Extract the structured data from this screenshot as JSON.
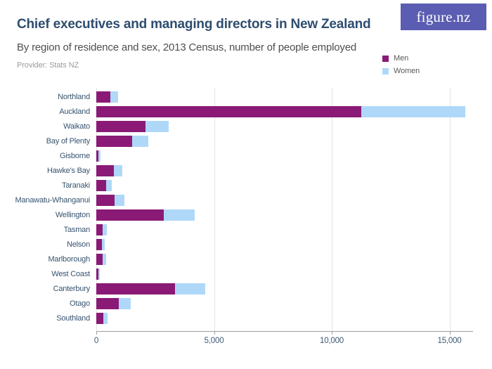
{
  "header": {
    "title": "Chief executives and managing directors in New Zealand",
    "subtitle": "By region of residence and sex, 2013 Census, number of people employed",
    "provider": "Provider: Stats NZ"
  },
  "logo": {
    "text": "figure.nz"
  },
  "colors": {
    "men": "#8a1a76",
    "women": "#afd8f8",
    "logo_bg": "#5a5db1",
    "title_text": "#2e4d6f",
    "subtitle_text": "#4f4f4f",
    "provider_text": "#9b9b9b",
    "axis_text": "#3d5875",
    "category_text": "#37536f",
    "gridline": "#e4e4e4",
    "axis_line": "#9aa0a6",
    "background": "#ffffff"
  },
  "legend": {
    "items": [
      {
        "label": "Men",
        "color": "#8a1a76"
      },
      {
        "label": "Women",
        "color": "#afd8f8"
      }
    ]
  },
  "chart_data": {
    "type": "bar",
    "orientation": "horizontal",
    "stacked": true,
    "title": "Chief executives and managing directors in New Zealand",
    "subtitle": "By region of residence and sex, 2013 Census, number of people employed",
    "source": "Provider: Stats NZ",
    "categories": [
      "Northland",
      "Auckland",
      "Waikato",
      "Bay of Plenty",
      "Gisborne",
      "Hawke's Bay",
      "Taranaki",
      "Manawatu-Whanganui",
      "Wellington",
      "Tasman",
      "Nelson",
      "Marlborough",
      "West Coast",
      "Canterbury",
      "Otago",
      "Southland"
    ],
    "series": [
      {
        "name": "Men",
        "color": "#8a1a76",
        "values": [
          590,
          11240,
          2090,
          1510,
          100,
          760,
          430,
          790,
          2880,
          270,
          250,
          270,
          100,
          3350,
          960,
          310
        ]
      },
      {
        "name": "Women",
        "color": "#afd8f8",
        "values": [
          350,
          4430,
          990,
          700,
          70,
          330,
          230,
          410,
          1310,
          175,
          120,
          140,
          60,
          1280,
          510,
          160
        ]
      }
    ],
    "xlabel": "",
    "ylabel": "",
    "xlim": [
      0,
      16000
    ],
    "xticks": [
      0,
      5000,
      10000,
      15000
    ],
    "xtick_labels": [
      "0",
      "5,000",
      "10,000",
      "15,000"
    ],
    "grid": true,
    "legend_position": "top-right"
  }
}
